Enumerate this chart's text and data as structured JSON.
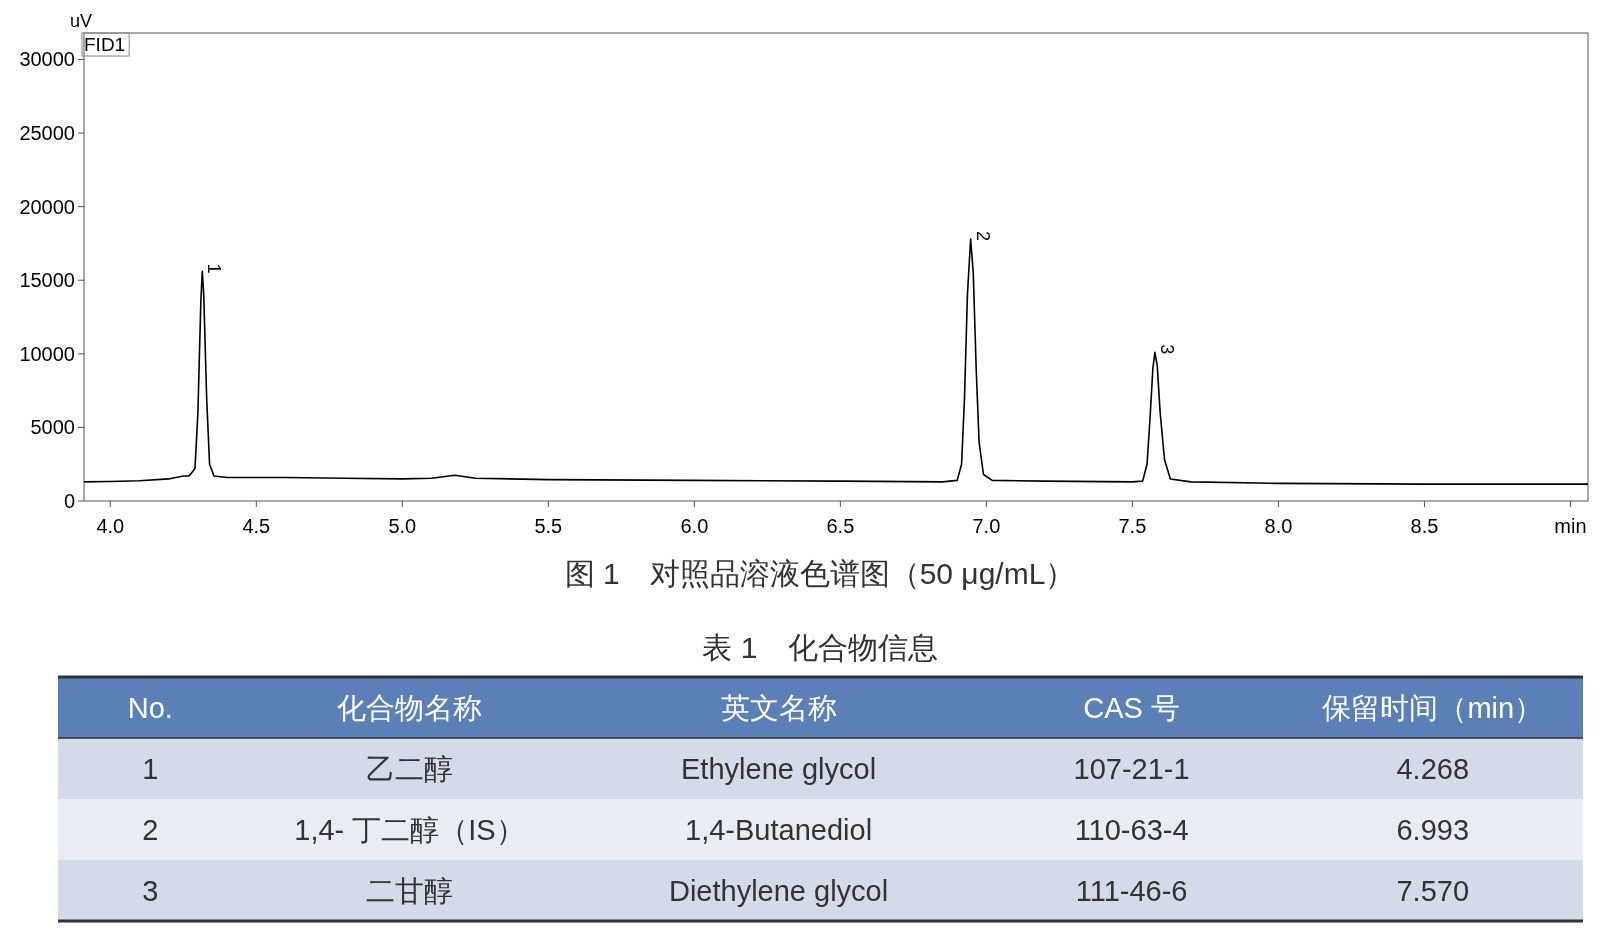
{
  "chart_data": [
    {
      "type": "line",
      "ylabel": "uV",
      "xlim": [
        3.91,
        9.06
      ],
      "ylim": [
        0,
        31800
      ],
      "xticks": [
        {
          "value": 4.0,
          "label": "4.0"
        },
        4.5,
        {
          "value": 5.0,
          "label": "5.0"
        },
        5.5,
        {
          "value": 6.0,
          "label": "6.0"
        },
        6.5,
        {
          "value": 7.0,
          "label": "7.0"
        },
        7.5,
        {
          "value": 8.0,
          "label": "8.0"
        },
        8.5,
        {
          "value": 9.0,
          "label": "min"
        }
      ],
      "yticks": [
        0,
        5000,
        10000,
        15000,
        20000,
        25000,
        30000
      ],
      "series": [
        {
          "color": "#000000",
          "x": [
            3.91,
            4.0,
            4.1,
            4.2,
            4.25,
            4.27,
            4.29,
            4.3,
            4.31,
            4.315,
            4.32,
            4.33,
            4.34,
            4.355,
            4.4,
            4.6,
            4.8,
            5.0,
            5.1,
            5.18,
            5.25,
            5.5,
            6.0,
            6.5,
            6.85,
            6.9,
            6.915,
            6.925,
            6.935,
            6.946,
            6.955,
            6.965,
            6.975,
            6.99,
            7.02,
            7.2,
            7.5,
            7.535,
            7.55,
            7.56,
            7.57,
            7.577,
            7.585,
            7.595,
            7.61,
            7.63,
            7.7,
            8.0,
            8.5,
            9.06
          ],
          "values": [
            1300,
            1320,
            1380,
            1500,
            1700,
            1700,
            2200,
            6000,
            13500,
            15600,
            14000,
            7000,
            2500,
            1700,
            1600,
            1600,
            1550,
            1500,
            1550,
            1750,
            1550,
            1450,
            1400,
            1350,
            1300,
            1400,
            2500,
            7000,
            14000,
            17800,
            15500,
            9000,
            4000,
            1800,
            1400,
            1350,
            1300,
            1350,
            2500,
            5500,
            9000,
            10100,
            9200,
            6000,
            2800,
            1500,
            1300,
            1200,
            1150,
            1150
          ]
        }
      ],
      "annotations": [
        "FID1",
        {
          "text": "1",
          "x": 4.315,
          "y": 15600
        },
        {
          "text": "2",
          "x": 6.946,
          "y": 17800
        },
        {
          "text": "3",
          "x": 7.577,
          "y": 10100
        },
        "图 1　对照品溶液色谱图（50 μg/mL）"
      ]
    },
    {
      "type": "other",
      "title": "表 1　化合物信息",
      "categories": [
        "No.",
        "化合物名称",
        "英文名称",
        "CAS 号",
        "保留时间（min）"
      ],
      "cell_labels": [
        [
          "1",
          "乙二醇",
          "Ethylene glycol",
          "107-21-1",
          "4.268"
        ],
        [
          "2",
          "1,4- 丁二醇（IS）",
          "1,4-Butanediol",
          "110-63-4",
          "6.993"
        ],
        [
          "3",
          "二甘醇",
          "Diethylene glycol",
          "111-46-6",
          "7.570"
        ]
      ]
    }
  ]
}
